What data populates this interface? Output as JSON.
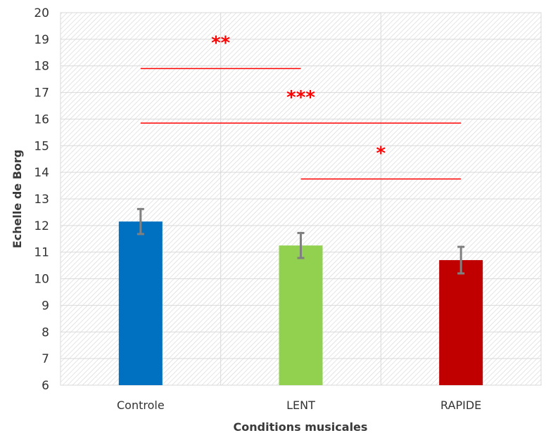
{
  "chart_data": {
    "type": "bar",
    "categories": [
      "Controle",
      "LENT",
      "RAPIDE"
    ],
    "values": [
      12.15,
      11.25,
      10.7
    ],
    "errors": [
      0.47,
      0.47,
      0.5
    ],
    "colors": [
      "#0070c0",
      "#92d050",
      "#c00000"
    ],
    "error_bar_color": "#808080",
    "xlabel": "Conditions musicales",
    "ylabel": "Echelle de Borg",
    "ylim": [
      6,
      20
    ],
    "yticks": [
      6,
      7,
      8,
      9,
      10,
      11,
      12,
      13,
      14,
      15,
      16,
      17,
      18,
      19,
      20
    ],
    "grid": true,
    "annotation_color": "#ff0000",
    "significance": [
      {
        "from": "Controle",
        "to": "LENT",
        "y": 17.9,
        "label": "**"
      },
      {
        "from": "Controle",
        "to": "RAPIDE",
        "y": 15.85,
        "label": "***"
      },
      {
        "from": "LENT",
        "to": "RAPIDE",
        "y": 13.75,
        "label": "*"
      }
    ]
  }
}
